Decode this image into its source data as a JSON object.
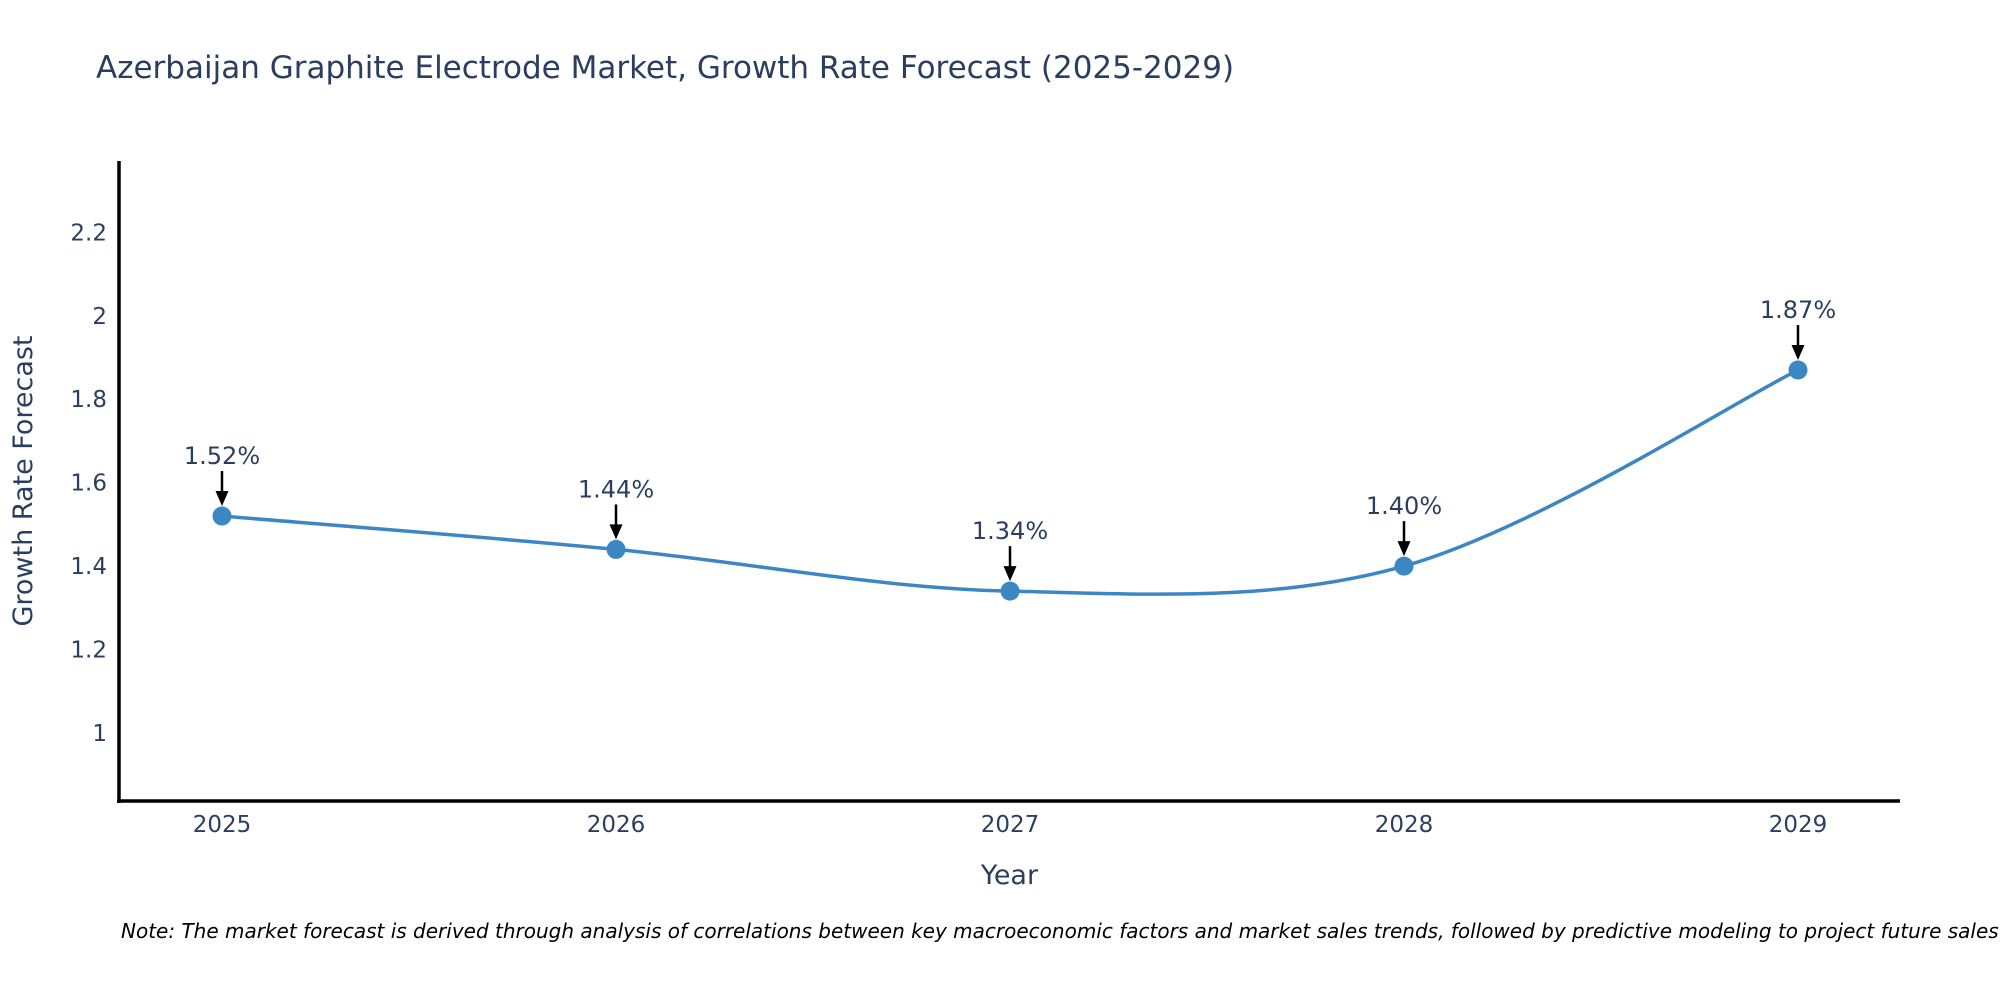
{
  "chart_data": {
    "type": "line",
    "title": "Azerbaijan Graphite Electrode Market, Growth Rate Forecast (2025-2029)",
    "xlabel": "Year",
    "ylabel": "Growth Rate Forecast",
    "categories": [
      "2025",
      "2026",
      "2027",
      "2028",
      "2029"
    ],
    "values": [
      1.52,
      1.44,
      1.34,
      1.4,
      1.87
    ],
    "point_labels": [
      "1.52%",
      "1.44%",
      "1.34%",
      "1.40%",
      "1.87%"
    ],
    "series_name": "Growth Rate Forecast",
    "y_ticks": [
      1,
      1.2,
      1.4,
      1.6,
      1.8,
      2,
      2.2
    ],
    "ylim": [
      0.837,
      2.371
    ],
    "line_shape": "spline",
    "grid": false,
    "legend": "none",
    "note": "Note: The market forecast is derived through analysis of correlations between key macroeconomic factors and market sales trends, followed by predictive modeling to project future sales",
    "colors": {
      "line": "#3d86c4",
      "marker": "#3d86c4",
      "text": "#2a3f5f",
      "axis": "#000000",
      "arrow": "#000000",
      "note_text": "#000000",
      "background": "#ffffff"
    }
  }
}
